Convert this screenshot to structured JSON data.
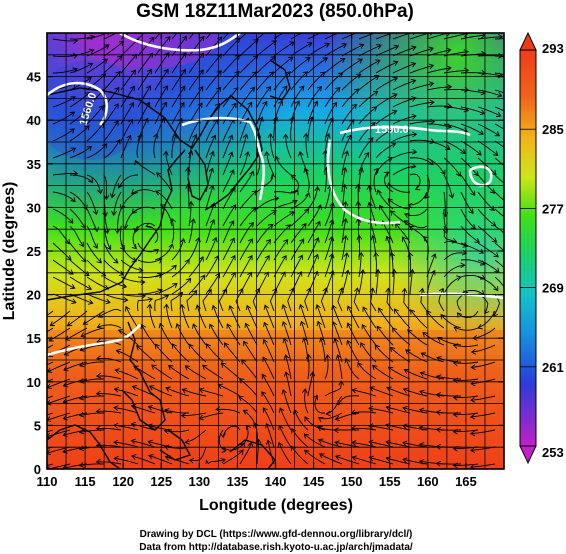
{
  "title": "GSM 18Z11Mar2023 (850.0hPa)",
  "xlabel": "Longitude (degrees)",
  "ylabel": "Latitude (degrees)",
  "x_ticks": [
    "110",
    "115",
    "120",
    "125",
    "130",
    "135",
    "140",
    "145",
    "150",
    "155",
    "160",
    "165"
  ],
  "y_ticks": [
    "0",
    "5",
    "10",
    "15",
    "20",
    "25",
    "30",
    "35",
    "40",
    "45"
  ],
  "colorbar": {
    "labels": [
      "293",
      "285",
      "277",
      "269",
      "261",
      "253"
    ],
    "min": 253,
    "max": 293
  },
  "contour_labels": [
    {
      "text": "1560.0"
    },
    {
      "text": "1590.0"
    }
  ],
  "credits": {
    "line1": "Drawing by DCL (https://www.gfd-dennou.org/library/dcl/)",
    "line2": "Data from http://database.rish.kyoto-u.ac.jp/arch/jmadata/"
  },
  "chart_data": {
    "type": "heatmap",
    "title": "GSM 18Z11Mar2023 (850.0hPa)",
    "xlabel": "Longitude (degrees)",
    "ylabel": "Latitude (degrees)",
    "xlim": [
      110,
      170
    ],
    "ylim": [
      0,
      50
    ],
    "color_range": [
      253,
      293
    ],
    "colors": {
      "grid": "#000000",
      "coast": "#000000",
      "contour": "#ffffff"
    }
  }
}
